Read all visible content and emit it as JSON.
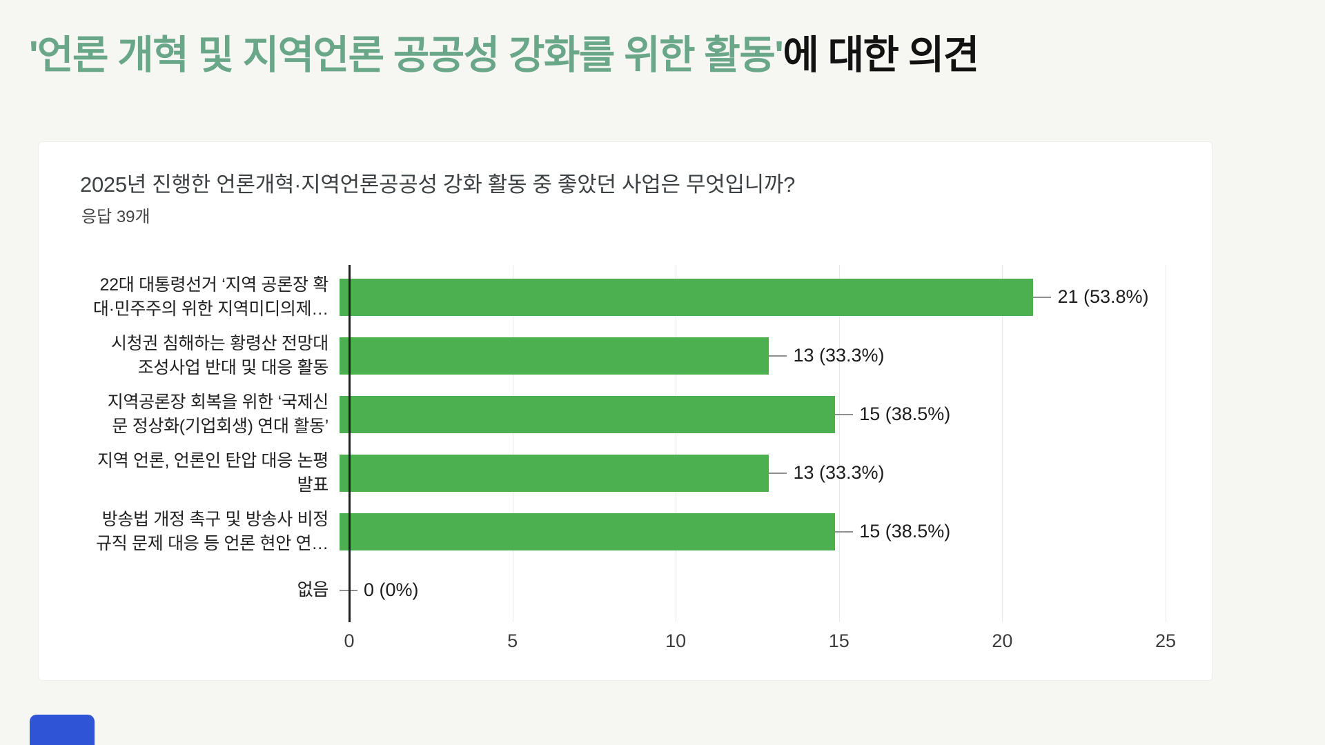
{
  "page": {
    "title_highlight": "'언론 개혁 및 지역언론 공공성 강화를 위한 활동'",
    "title_rest": "에 대한 의견",
    "accent_color": "#6aa789",
    "background_color": "#f6f6f3",
    "bottom_left_shape_color": "#2f55d6"
  },
  "card": {
    "question_title": "2025년 진행한 언론개혁·지역언론공공성 강화 활동 중 좋았던 사업은 무엇입니까?",
    "responses_label": "응답 39개"
  },
  "chart_data": {
    "type": "bar",
    "orientation": "horizontal",
    "title": "2025년 진행한 언론개혁·지역언론공공성 강화 활동 중 좋았던 사업은 무엇입니까?",
    "subtitle": "응답 39개",
    "total_responses": 39,
    "bar_color": "#4caf50",
    "grid": true,
    "xlim": [
      0,
      25
    ],
    "x_ticks": [
      0,
      5,
      10,
      15,
      20,
      25
    ],
    "categories": [
      "22대 대통령선거 ‘지역 공론장 확대·민주주의 위한 지역미디의제…",
      "시청권 침해하는 황령산 전망대 조성사업 반대 및 대응 활동",
      "지역공론장 회복을 위한 ‘국제신문 정상화(기업회생) 연대 활동’",
      "지역 언론, 언론인 탄압 대응 논평 발표",
      "방송법 개정 촉구 및 방송사 비정규직 문제 대응 등 언론 현안 연…",
      "없음"
    ],
    "display_labels": [
      "22대 대통령선거 ‘지역 공론장 확\n대·민주주의 위한 지역미디의제…",
      "시청권 침해하는 황령산 전망대\n조성사업 반대 및 대응 활동",
      "지역공론장 회복을 위한 ‘국제신\n문 정상화(기업회생) 연대 활동’",
      "지역 언론, 언론인 탄압 대응 논평\n발표",
      "방송법 개정 촉구 및 방송사 비정\n규직 문제 대응 등 언론 현안 연…",
      "없음"
    ],
    "values": [
      21,
      13,
      15,
      13,
      15,
      0
    ],
    "value_labels": [
      "21 (53.8%)",
      "13 (33.3%)",
      "15 (38.5%)",
      "13 (33.3%)",
      "15 (38.5%)",
      "0 (0%)"
    ]
  }
}
